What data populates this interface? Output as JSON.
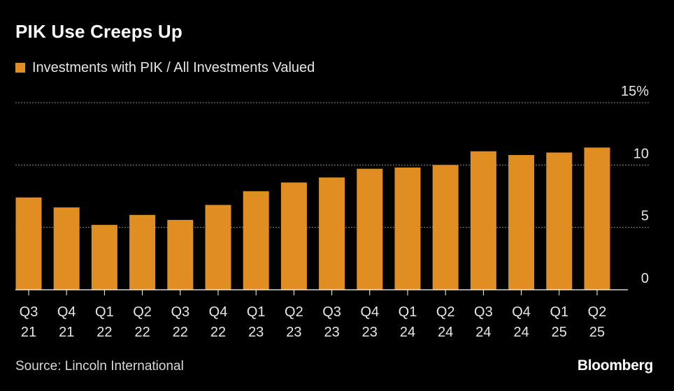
{
  "header": {
    "title": "PIK Use Creeps Up"
  },
  "footer": {
    "source": "Source: Lincoln International",
    "brand": "Bloomberg"
  },
  "colors": {
    "background": "#000000",
    "bar": "#e08e22",
    "gridline": "#8a8a8a",
    "text": "#ffffff"
  },
  "chart_data": {
    "type": "bar",
    "title": "PIK Use Creeps Up",
    "xlabel": "",
    "ylabel": "",
    "legend": [
      "Investments with PIK / All Investments Valued"
    ],
    "legend_position": "top-left",
    "grid": true,
    "ylim": [
      0,
      15
    ],
    "yticks": [
      {
        "value": 15,
        "label": "15%"
      },
      {
        "value": 10,
        "label": "10"
      },
      {
        "value": 5,
        "label": "5"
      },
      {
        "value": 0,
        "label": "0"
      }
    ],
    "categories": [
      {
        "quarter": "Q3",
        "year": "21"
      },
      {
        "quarter": "Q4",
        "year": "21"
      },
      {
        "quarter": "Q1",
        "year": "22"
      },
      {
        "quarter": "Q2",
        "year": "22"
      },
      {
        "quarter": "Q3",
        "year": "22"
      },
      {
        "quarter": "Q4",
        "year": "22"
      },
      {
        "quarter": "Q1",
        "year": "23"
      },
      {
        "quarter": "Q2",
        "year": "23"
      },
      {
        "quarter": "Q3",
        "year": "23"
      },
      {
        "quarter": "Q4",
        "year": "23"
      },
      {
        "quarter": "Q1",
        "year": "24"
      },
      {
        "quarter": "Q2",
        "year": "24"
      },
      {
        "quarter": "Q3",
        "year": "24"
      },
      {
        "quarter": "Q4",
        "year": "24"
      },
      {
        "quarter": "Q1",
        "year": "25"
      },
      {
        "quarter": "Q2",
        "year": "25"
      }
    ],
    "series": [
      {
        "name": "Investments with PIK / All Investments Valued",
        "values": [
          7.4,
          6.6,
          5.2,
          6.0,
          5.6,
          6.8,
          7.9,
          8.6,
          9.0,
          9.7,
          9.8,
          10.0,
          11.1,
          10.8,
          11.0,
          11.4
        ]
      }
    ]
  }
}
